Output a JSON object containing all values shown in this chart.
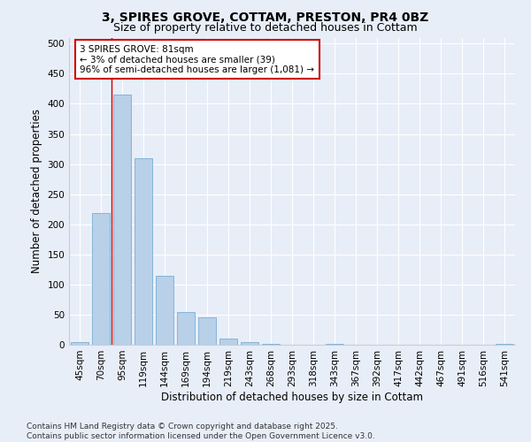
{
  "title": "3, SPIRES GROVE, COTTAM, PRESTON, PR4 0BZ",
  "subtitle": "Size of property relative to detached houses in Cottam",
  "xlabel": "Distribution of detached houses by size in Cottam",
  "ylabel": "Number of detached properties",
  "bar_color": "#b8d0e8",
  "bar_edge_color": "#7aadd4",
  "vline_color": "#cc0000",
  "vline_x": 1.5,
  "categories": [
    "45sqm",
    "70sqm",
    "95sqm",
    "119sqm",
    "144sqm",
    "169sqm",
    "194sqm",
    "219sqm",
    "243sqm",
    "268sqm",
    "293sqm",
    "318sqm",
    "343sqm",
    "367sqm",
    "392sqm",
    "417sqm",
    "442sqm",
    "467sqm",
    "491sqm",
    "516sqm",
    "541sqm"
  ],
  "values": [
    5,
    218,
    415,
    310,
    115,
    55,
    45,
    10,
    5,
    1,
    0,
    0,
    2,
    0,
    0,
    0,
    0,
    0,
    0,
    0,
    2
  ],
  "ylim": [
    0,
    510
  ],
  "yticks": [
    0,
    50,
    100,
    150,
    200,
    250,
    300,
    350,
    400,
    450,
    500
  ],
  "annotation_text": "3 SPIRES GROVE: 81sqm\n← 3% of detached houses are smaller (39)\n96% of semi-detached houses are larger (1,081) →",
  "annotation_box_color": "#ffffff",
  "annotation_box_edge_color": "#cc0000",
  "background_color": "#e8eef8",
  "footer_text": "Contains HM Land Registry data © Crown copyright and database right 2025.\nContains public sector information licensed under the Open Government Licence v3.0.",
  "title_fontsize": 10,
  "subtitle_fontsize": 9,
  "axis_label_fontsize": 8.5,
  "tick_fontsize": 7.5,
  "annotation_fontsize": 7.5,
  "footer_fontsize": 6.5,
  "grid_color": "#ffffff",
  "spine_color": "#cccccc"
}
